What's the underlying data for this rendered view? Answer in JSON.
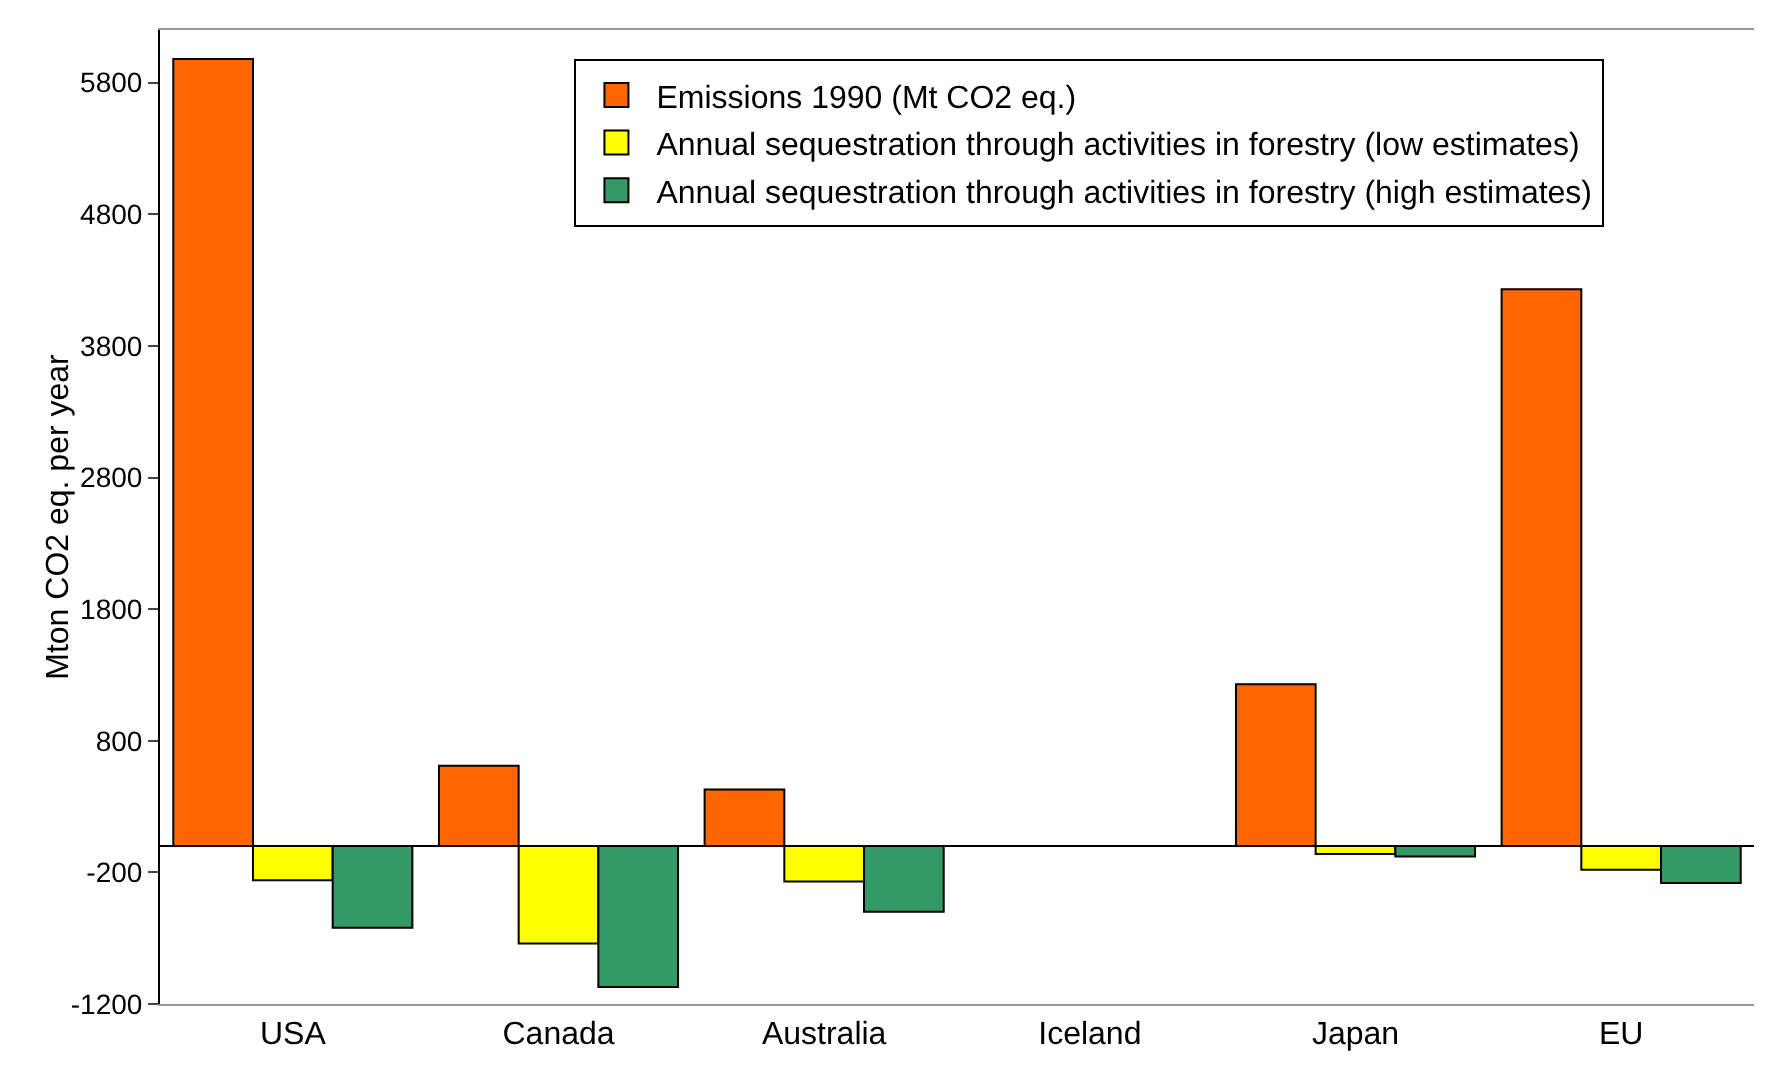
{
  "chart_data": {
    "type": "bar",
    "ylabel": "Mton CO2 eq. per year",
    "categories": [
      "USA",
      "Canada",
      "Australia",
      "Iceland",
      "Japan",
      "EU"
    ],
    "series": [
      {
        "name": "Emissions 1990 (Mt CO2 eq.)",
        "color": "#ff6600",
        "values": [
          5980,
          610,
          430,
          null,
          1230,
          4230
        ]
      },
      {
        "name": "Annual sequestration through activities in forestry (low estimates)",
        "color": "#ffff00",
        "values": [
          -260,
          -740,
          -270,
          null,
          -60,
          -180
        ]
      },
      {
        "name": "Annual sequestration through activities in forestry (high estimates)",
        "color": "#339966",
        "values": [
          -620,
          -1070,
          -500,
          null,
          -80,
          -280
        ]
      }
    ],
    "ylim": [
      -1200,
      6200
    ],
    "yticks": [
      -1200,
      -200,
      800,
      1800,
      2800,
      3800,
      4800,
      5800
    ],
    "grid": false,
    "legend": "top"
  }
}
